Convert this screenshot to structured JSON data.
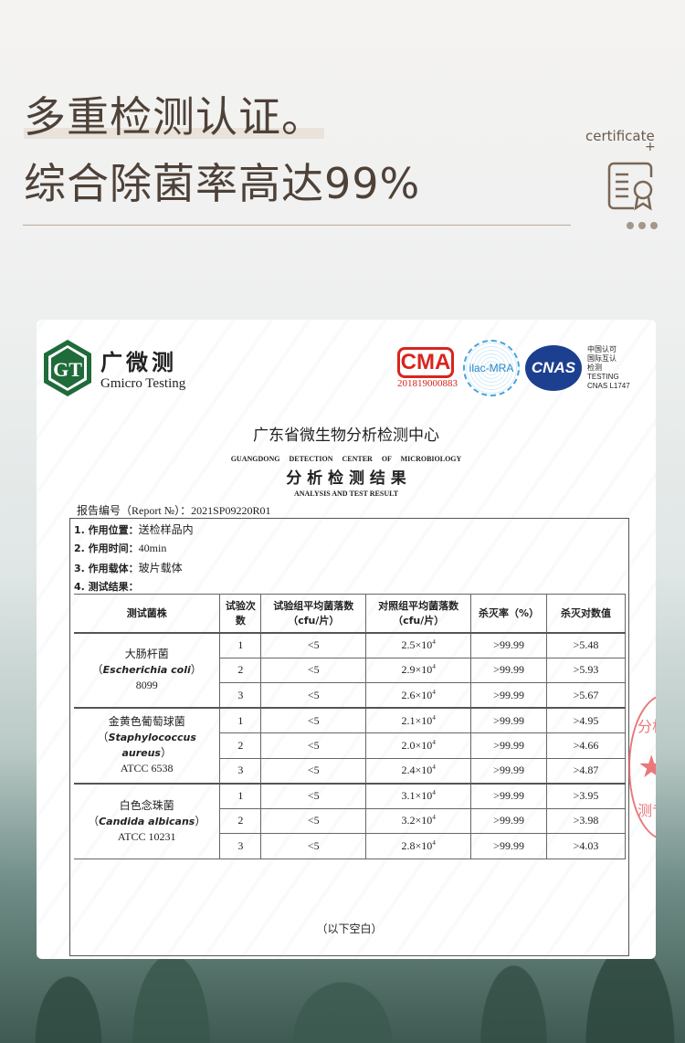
{
  "header": {
    "line1": "多重检测认证。",
    "line2": "综合除菌率高达99%",
    "cert_label": "certificate",
    "plus": "+",
    "icon": "certificate-icon"
  },
  "report": {
    "logo_cn": "广微测",
    "logo_en": "Gmicro Testing",
    "logo_mark": "GT",
    "cma": {
      "label": "CMA",
      "number": "201819000883"
    },
    "ilac": "ilac-MRA",
    "cnas": "CNAS",
    "cnas_text": [
      "中国认可",
      "国际互认",
      "检测",
      "TESTING",
      "CNAS L1747"
    ],
    "org_cn": "广东省微生物分析检测中心",
    "org_en": "GUANGDONG DETECTION CENTER OF MICROBIOLOGY",
    "title_cn": "分 析 检 测 结 果",
    "title_en": "ANALYSIS AND TEST RESULT",
    "report_no": "报告编号（Report №）：2021SP09220R01",
    "items": [
      {
        "k": "1. 作用位置：",
        "v": "送检样品内"
      },
      {
        "k": "2. 作用时间：",
        "v": "40min"
      },
      {
        "k": "3. 作用载体：",
        "v": "玻片载体"
      },
      {
        "k": "4. 测试结果：",
        "v": ""
      }
    ],
    "columns": [
      "测试菌株",
      "试验次数",
      "试验组平均菌落数（cfu/片）",
      "对照组平均菌落数（cfu/片）",
      "杀灭率（%）",
      "杀灭对数值"
    ],
    "groups": [
      {
        "cn": "大肠杆菌",
        "latin": "Escherichia coli",
        "strain": "8099",
        "rows": [
          [
            "1",
            "<5",
            "2.5×10",
            "4",
            ">99.99",
            ">5.48"
          ],
          [
            "2",
            "<5",
            "2.9×10",
            "4",
            ">99.99",
            ">5.93"
          ],
          [
            "3",
            "<5",
            "2.6×10",
            "4",
            ">99.99",
            ">5.67"
          ]
        ]
      },
      {
        "cn": "金黄色葡萄球菌",
        "latin": "Staphylococcus aureus",
        "strain": "ATCC 6538",
        "rows": [
          [
            "1",
            "<5",
            "2.1×10",
            "4",
            ">99.99",
            ">4.95"
          ],
          [
            "2",
            "<5",
            "2.0×10",
            "4",
            ">99.99",
            ">4.66"
          ],
          [
            "3",
            "<5",
            "2.4×10",
            "4",
            ">99.99",
            ">4.87"
          ]
        ]
      },
      {
        "cn": "白色念珠菌",
        "latin": "Candida albicans",
        "strain": "ATCC 10231",
        "rows": [
          [
            "1",
            "<5",
            "3.1×10",
            "4",
            ">99.99",
            ">3.95"
          ],
          [
            "2",
            "<5",
            "3.2×10",
            "4",
            ">99.99",
            ">3.98"
          ],
          [
            "3",
            "<5",
            "2.8×10",
            "4",
            ">99.99",
            ">4.03"
          ]
        ]
      }
    ],
    "blank_note": "（以下空白）",
    "stamp_text": [
      "分析",
      "★",
      "测专"
    ]
  }
}
